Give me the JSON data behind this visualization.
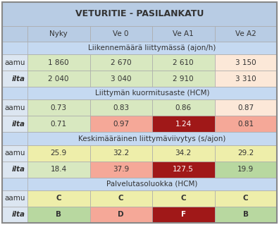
{
  "title": "VETURITIE - PASILANKATU",
  "col_headers": [
    "Nyky",
    "Ve 0",
    "Ve A1",
    "Ve A2"
  ],
  "sections": [
    {
      "header": "Liikennemäärä liittymässä (ajon/h)",
      "rows": [
        {
          "label": "aamu",
          "values": [
            "1 860",
            "2 670",
            "2 610",
            "3 150"
          ]
        },
        {
          "label": "ilta",
          "values": [
            "2 040",
            "3 040",
            "2 910",
            "3 310"
          ]
        }
      ],
      "cell_colors": [
        [
          "#d8e8c0",
          "#d8e8c0",
          "#d8e8c0",
          "#fce8d8"
        ],
        [
          "#d8e8c0",
          "#d8e8c0",
          "#d8e8c0",
          "#fce8d8"
        ]
      ]
    },
    {
      "header": "Liittymän kuormitusaste (HCM)",
      "rows": [
        {
          "label": "aamu",
          "values": [
            "0.73",
            "0.83",
            "0.86",
            "0.87"
          ]
        },
        {
          "label": "ilta",
          "values": [
            "0.71",
            "0.97",
            "1.24",
            "0.81"
          ]
        }
      ],
      "cell_colors": [
        [
          "#d8e8c0",
          "#d8e8c0",
          "#d8e8c0",
          "#fce8d8"
        ],
        [
          "#d8e8c0",
          "#f5a898",
          "#a01818",
          "#f5a898"
        ]
      ]
    },
    {
      "header": "Keskimääräinen liittymäviivytys (s/ajon)",
      "rows": [
        {
          "label": "aamu",
          "values": [
            "25.9",
            "32.2",
            "34.2",
            "29.2"
          ]
        },
        {
          "label": "ilta",
          "values": [
            "18.4",
            "37.9",
            "127.5",
            "19.9"
          ]
        }
      ],
      "cell_colors": [
        [
          "#eeeeaa",
          "#eeeeaa",
          "#eeeeaa",
          "#eeeeaa"
        ],
        [
          "#d8e8c0",
          "#f5a898",
          "#a01818",
          "#b8d8a0"
        ]
      ]
    },
    {
      "header": "Palvelutasoluokka (HCM)",
      "rows": [
        {
          "label": "aamu",
          "values": [
            "C",
            "C",
            "C",
            "C"
          ]
        },
        {
          "label": "ilta",
          "values": [
            "B",
            "D",
            "F",
            "B"
          ]
        }
      ],
      "cell_colors": [
        [
          "#eeeeaa",
          "#eeeeaa",
          "#eeeeaa",
          "#eeeeaa"
        ],
        [
          "#b8d8a0",
          "#f5a898",
          "#a01818",
          "#b8d8a0"
        ]
      ],
      "bold_values": true
    }
  ],
  "header_bg": "#b8cce4",
  "subheader_bg": "#c5d9f1",
  "label_bg": "#dce6f1",
  "title_fontsize": 9,
  "header_fontsize": 7.5,
  "cell_fontsize": 7.5,
  "subheader_fontsize": 7.5
}
